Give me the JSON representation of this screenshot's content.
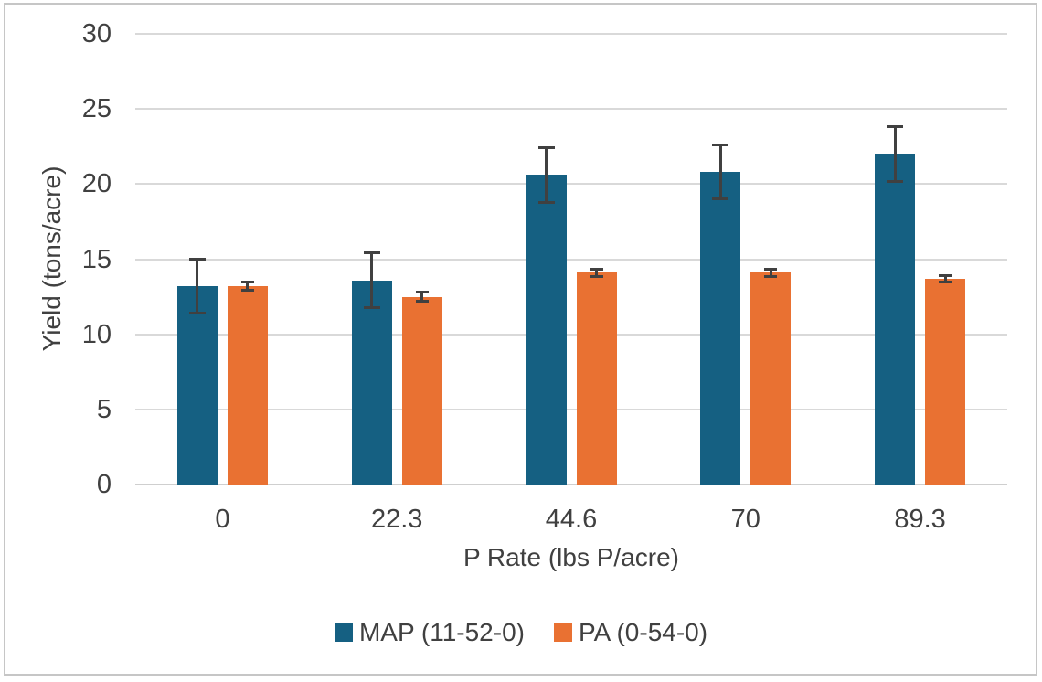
{
  "figure": {
    "background": "#FFFFFF",
    "border_color": "#C6C6C6"
  },
  "chart_data": {
    "type": "bar",
    "title": "",
    "xlabel": "P Rate (lbs P/acre)",
    "ylabel": "Yield (tons/acre)",
    "categories": [
      "0",
      "22.3",
      "44.6",
      "70",
      "89.3"
    ],
    "series": [
      {
        "name": "MAP (11-52-0)",
        "color": "#156082",
        "values": [
          13.2,
          13.6,
          20.6,
          20.8,
          22.0
        ],
        "errors": [
          1.9,
          1.9,
          1.9,
          1.9,
          1.9
        ],
        "error_cap_width": 18
      },
      {
        "name": "PA (0-54-0)",
        "color": "#E97132",
        "values": [
          13.2,
          12.5,
          14.1,
          14.1,
          13.7
        ],
        "errors": [
          0.35,
          0.4,
          0.35,
          0.35,
          0.3
        ],
        "error_cap_width": 14
      }
    ],
    "ylim": [
      0,
      30
    ],
    "ytick_step": 5,
    "yticks": [
      0,
      5,
      10,
      15,
      20,
      25,
      30
    ],
    "grid": true,
    "legend_position": "bottom",
    "colors": {
      "text": "#404040",
      "gridline": "#D9D9D9",
      "axis_line": "#CFCFCF",
      "error_bar": "#404040"
    }
  }
}
